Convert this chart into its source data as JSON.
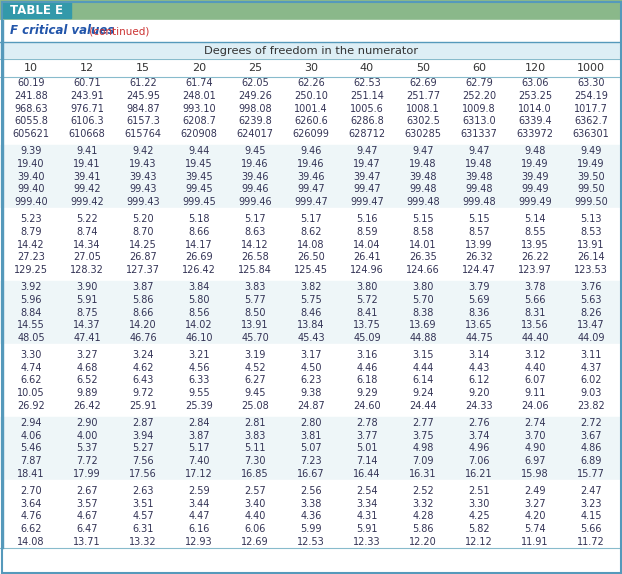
{
  "title_box": "TABLE E",
  "subtitle_italic": "F critical values",
  "subtitle_continued": " (continued)",
  "col_header_main": "Degrees of freedom in the numerator",
  "col_headers": [
    "10",
    "12",
    "15",
    "20",
    "25",
    "30",
    "40",
    "50",
    "60",
    "120",
    "1000"
  ],
  "table_data": [
    [
      "60.19",
      "60.71",
      "61.22",
      "61.74",
      "62.05",
      "62.26",
      "62.53",
      "62.69",
      "62.79",
      "63.06",
      "63.30"
    ],
    [
      "241.88",
      "243.91",
      "245.95",
      "248.01",
      "249.26",
      "250.10",
      "251.14",
      "251.77",
      "252.20",
      "253.25",
      "254.19"
    ],
    [
      "968.63",
      "976.71",
      "984.87",
      "993.10",
      "998.08",
      "1001.4",
      "1005.6",
      "1008.1",
      "1009.8",
      "1014.0",
      "1017.7"
    ],
    [
      "6055.8",
      "6106.3",
      "6157.3",
      "6208.7",
      "6239.8",
      "6260.6",
      "6286.8",
      "6302.5",
      "6313.0",
      "6339.4",
      "6362.7"
    ],
    [
      "605621",
      "610668",
      "615764",
      "620908",
      "624017",
      "626099",
      "628712",
      "630285",
      "631337",
      "633972",
      "636301"
    ],
    [
      "",
      "",
      "",
      "",
      "",
      "",
      "",
      "",
      "",
      "",
      ""
    ],
    [
      "9.39",
      "9.41",
      "9.42",
      "9.44",
      "9.45",
      "9.46",
      "9.47",
      "9.47",
      "9.47",
      "9.48",
      "9.49"
    ],
    [
      "19.40",
      "19.41",
      "19.43",
      "19.45",
      "19.46",
      "19.46",
      "19.47",
      "19.48",
      "19.48",
      "19.49",
      "19.49"
    ],
    [
      "39.40",
      "39.41",
      "39.43",
      "39.45",
      "39.46",
      "39.46",
      "39.47",
      "39.48",
      "39.48",
      "39.49",
      "39.50"
    ],
    [
      "99.40",
      "99.42",
      "99.43",
      "99.45",
      "99.46",
      "99.47",
      "99.47",
      "99.48",
      "99.48",
      "99.49",
      "99.50"
    ],
    [
      "999.40",
      "999.42",
      "999.43",
      "999.45",
      "999.46",
      "999.47",
      "999.47",
      "999.48",
      "999.48",
      "999.49",
      "999.50"
    ],
    [
      "",
      "",
      "",
      "",
      "",
      "",
      "",
      "",
      "",
      "",
      ""
    ],
    [
      "5.23",
      "5.22",
      "5.20",
      "5.18",
      "5.17",
      "5.17",
      "5.16",
      "5.15",
      "5.15",
      "5.14",
      "5.13"
    ],
    [
      "8.79",
      "8.74",
      "8.70",
      "8.66",
      "8.63",
      "8.62",
      "8.59",
      "8.58",
      "8.57",
      "8.55",
      "8.53"
    ],
    [
      "14.42",
      "14.34",
      "14.25",
      "14.17",
      "14.12",
      "14.08",
      "14.04",
      "14.01",
      "13.99",
      "13.95",
      "13.91"
    ],
    [
      "27.23",
      "27.05",
      "26.87",
      "26.69",
      "26.58",
      "26.50",
      "26.41",
      "26.35",
      "26.32",
      "26.22",
      "26.14"
    ],
    [
      "129.25",
      "128.32",
      "127.37",
      "126.42",
      "125.84",
      "125.45",
      "124.96",
      "124.66",
      "124.47",
      "123.97",
      "123.53"
    ],
    [
      "",
      "",
      "",
      "",
      "",
      "",
      "",
      "",
      "",
      "",
      ""
    ],
    [
      "3.92",
      "3.90",
      "3.87",
      "3.84",
      "3.83",
      "3.82",
      "3.80",
      "3.80",
      "3.79",
      "3.78",
      "3.76"
    ],
    [
      "5.96",
      "5.91",
      "5.86",
      "5.80",
      "5.77",
      "5.75",
      "5.72",
      "5.70",
      "5.69",
      "5.66",
      "5.63"
    ],
    [
      "8.84",
      "8.75",
      "8.66",
      "8.56",
      "8.50",
      "8.46",
      "8.41",
      "8.38",
      "8.36",
      "8.31",
      "8.26"
    ],
    [
      "14.55",
      "14.37",
      "14.20",
      "14.02",
      "13.91",
      "13.84",
      "13.75",
      "13.69",
      "13.65",
      "13.56",
      "13.47"
    ],
    [
      "48.05",
      "47.41",
      "46.76",
      "46.10",
      "45.70",
      "45.43",
      "45.09",
      "44.88",
      "44.75",
      "44.40",
      "44.09"
    ],
    [
      "",
      "",
      "",
      "",
      "",
      "",
      "",
      "",
      "",
      "",
      ""
    ],
    [
      "3.30",
      "3.27",
      "3.24",
      "3.21",
      "3.19",
      "3.17",
      "3.16",
      "3.15",
      "3.14",
      "3.12",
      "3.11"
    ],
    [
      "4.74",
      "4.68",
      "4.62",
      "4.56",
      "4.52",
      "4.50",
      "4.46",
      "4.44",
      "4.43",
      "4.40",
      "4.37"
    ],
    [
      "6.62",
      "6.52",
      "6.43",
      "6.33",
      "6.27",
      "6.23",
      "6.18",
      "6.14",
      "6.12",
      "6.07",
      "6.02"
    ],
    [
      "10.05",
      "9.89",
      "9.72",
      "9.55",
      "9.45",
      "9.38",
      "9.29",
      "9.24",
      "9.20",
      "9.11",
      "9.03"
    ],
    [
      "26.92",
      "26.42",
      "25.91",
      "25.39",
      "25.08",
      "24.87",
      "24.60",
      "24.44",
      "24.33",
      "24.06",
      "23.82"
    ],
    [
      "",
      "",
      "",
      "",
      "",
      "",
      "",
      "",
      "",
      "",
      ""
    ],
    [
      "2.94",
      "2.90",
      "2.87",
      "2.84",
      "2.81",
      "2.80",
      "2.78",
      "2.77",
      "2.76",
      "2.74",
      "2.72"
    ],
    [
      "4.06",
      "4.00",
      "3.94",
      "3.87",
      "3.83",
      "3.81",
      "3.77",
      "3.75",
      "3.74",
      "3.70",
      "3.67"
    ],
    [
      "5.46",
      "5.37",
      "5.27",
      "5.17",
      "5.11",
      "5.07",
      "5.01",
      "4.98",
      "4.96",
      "4.90",
      "4.86"
    ],
    [
      "7.87",
      "7.72",
      "7.56",
      "7.40",
      "7.30",
      "7.23",
      "7.14",
      "7.09",
      "7.06",
      "6.97",
      "6.89"
    ],
    [
      "18.41",
      "17.99",
      "17.56",
      "17.12",
      "16.85",
      "16.67",
      "16.44",
      "16.31",
      "16.21",
      "15.98",
      "15.77"
    ],
    [
      "",
      "",
      "",
      "",
      "",
      "",
      "",
      "",
      "",
      "",
      ""
    ],
    [
      "2.70",
      "2.67",
      "2.63",
      "2.59",
      "2.57",
      "2.56",
      "2.54",
      "2.52",
      "2.51",
      "2.49",
      "2.47"
    ],
    [
      "3.64",
      "3.57",
      "3.51",
      "3.44",
      "3.40",
      "3.38",
      "3.34",
      "3.32",
      "3.30",
      "3.27",
      "3.23"
    ],
    [
      "4.76",
      "4.67",
      "4.57",
      "4.47",
      "4.40",
      "4.36",
      "4.31",
      "4.28",
      "4.25",
      "4.20",
      "4.15"
    ],
    [
      "6.62",
      "6.47",
      "6.31",
      "6.16",
      "6.06",
      "5.99",
      "5.91",
      "5.86",
      "5.82",
      "5.74",
      "5.66"
    ],
    [
      "14.08",
      "13.71",
      "13.32",
      "12.93",
      "12.69",
      "12.53",
      "12.33",
      "12.20",
      "12.12",
      "11.91",
      "11.72"
    ]
  ],
  "top_bar_color": "#8ab88a",
  "title_box_color": "#3399aa",
  "title_box_text_color": "#ffffff",
  "subtitle_color_main": "#2255aa",
  "subtitle_color_continued": "#cc3333",
  "subtitle_bg": "#ffffff",
  "dof_row_bg": "#ddeef5",
  "col_header_bg": "#ffffff",
  "col_header_color": "#333333",
  "border_color_outer": "#5599bb",
  "border_color_inner": "#88bbcc",
  "data_text_color": "#333355",
  "row_bg_white": "#ffffff",
  "row_bg_tint": "#eef6f8",
  "gap_row_bg": "#ffffff",
  "data_font_size": 7.0,
  "col_header_font_size": 8.0,
  "dof_font_size": 8.2
}
